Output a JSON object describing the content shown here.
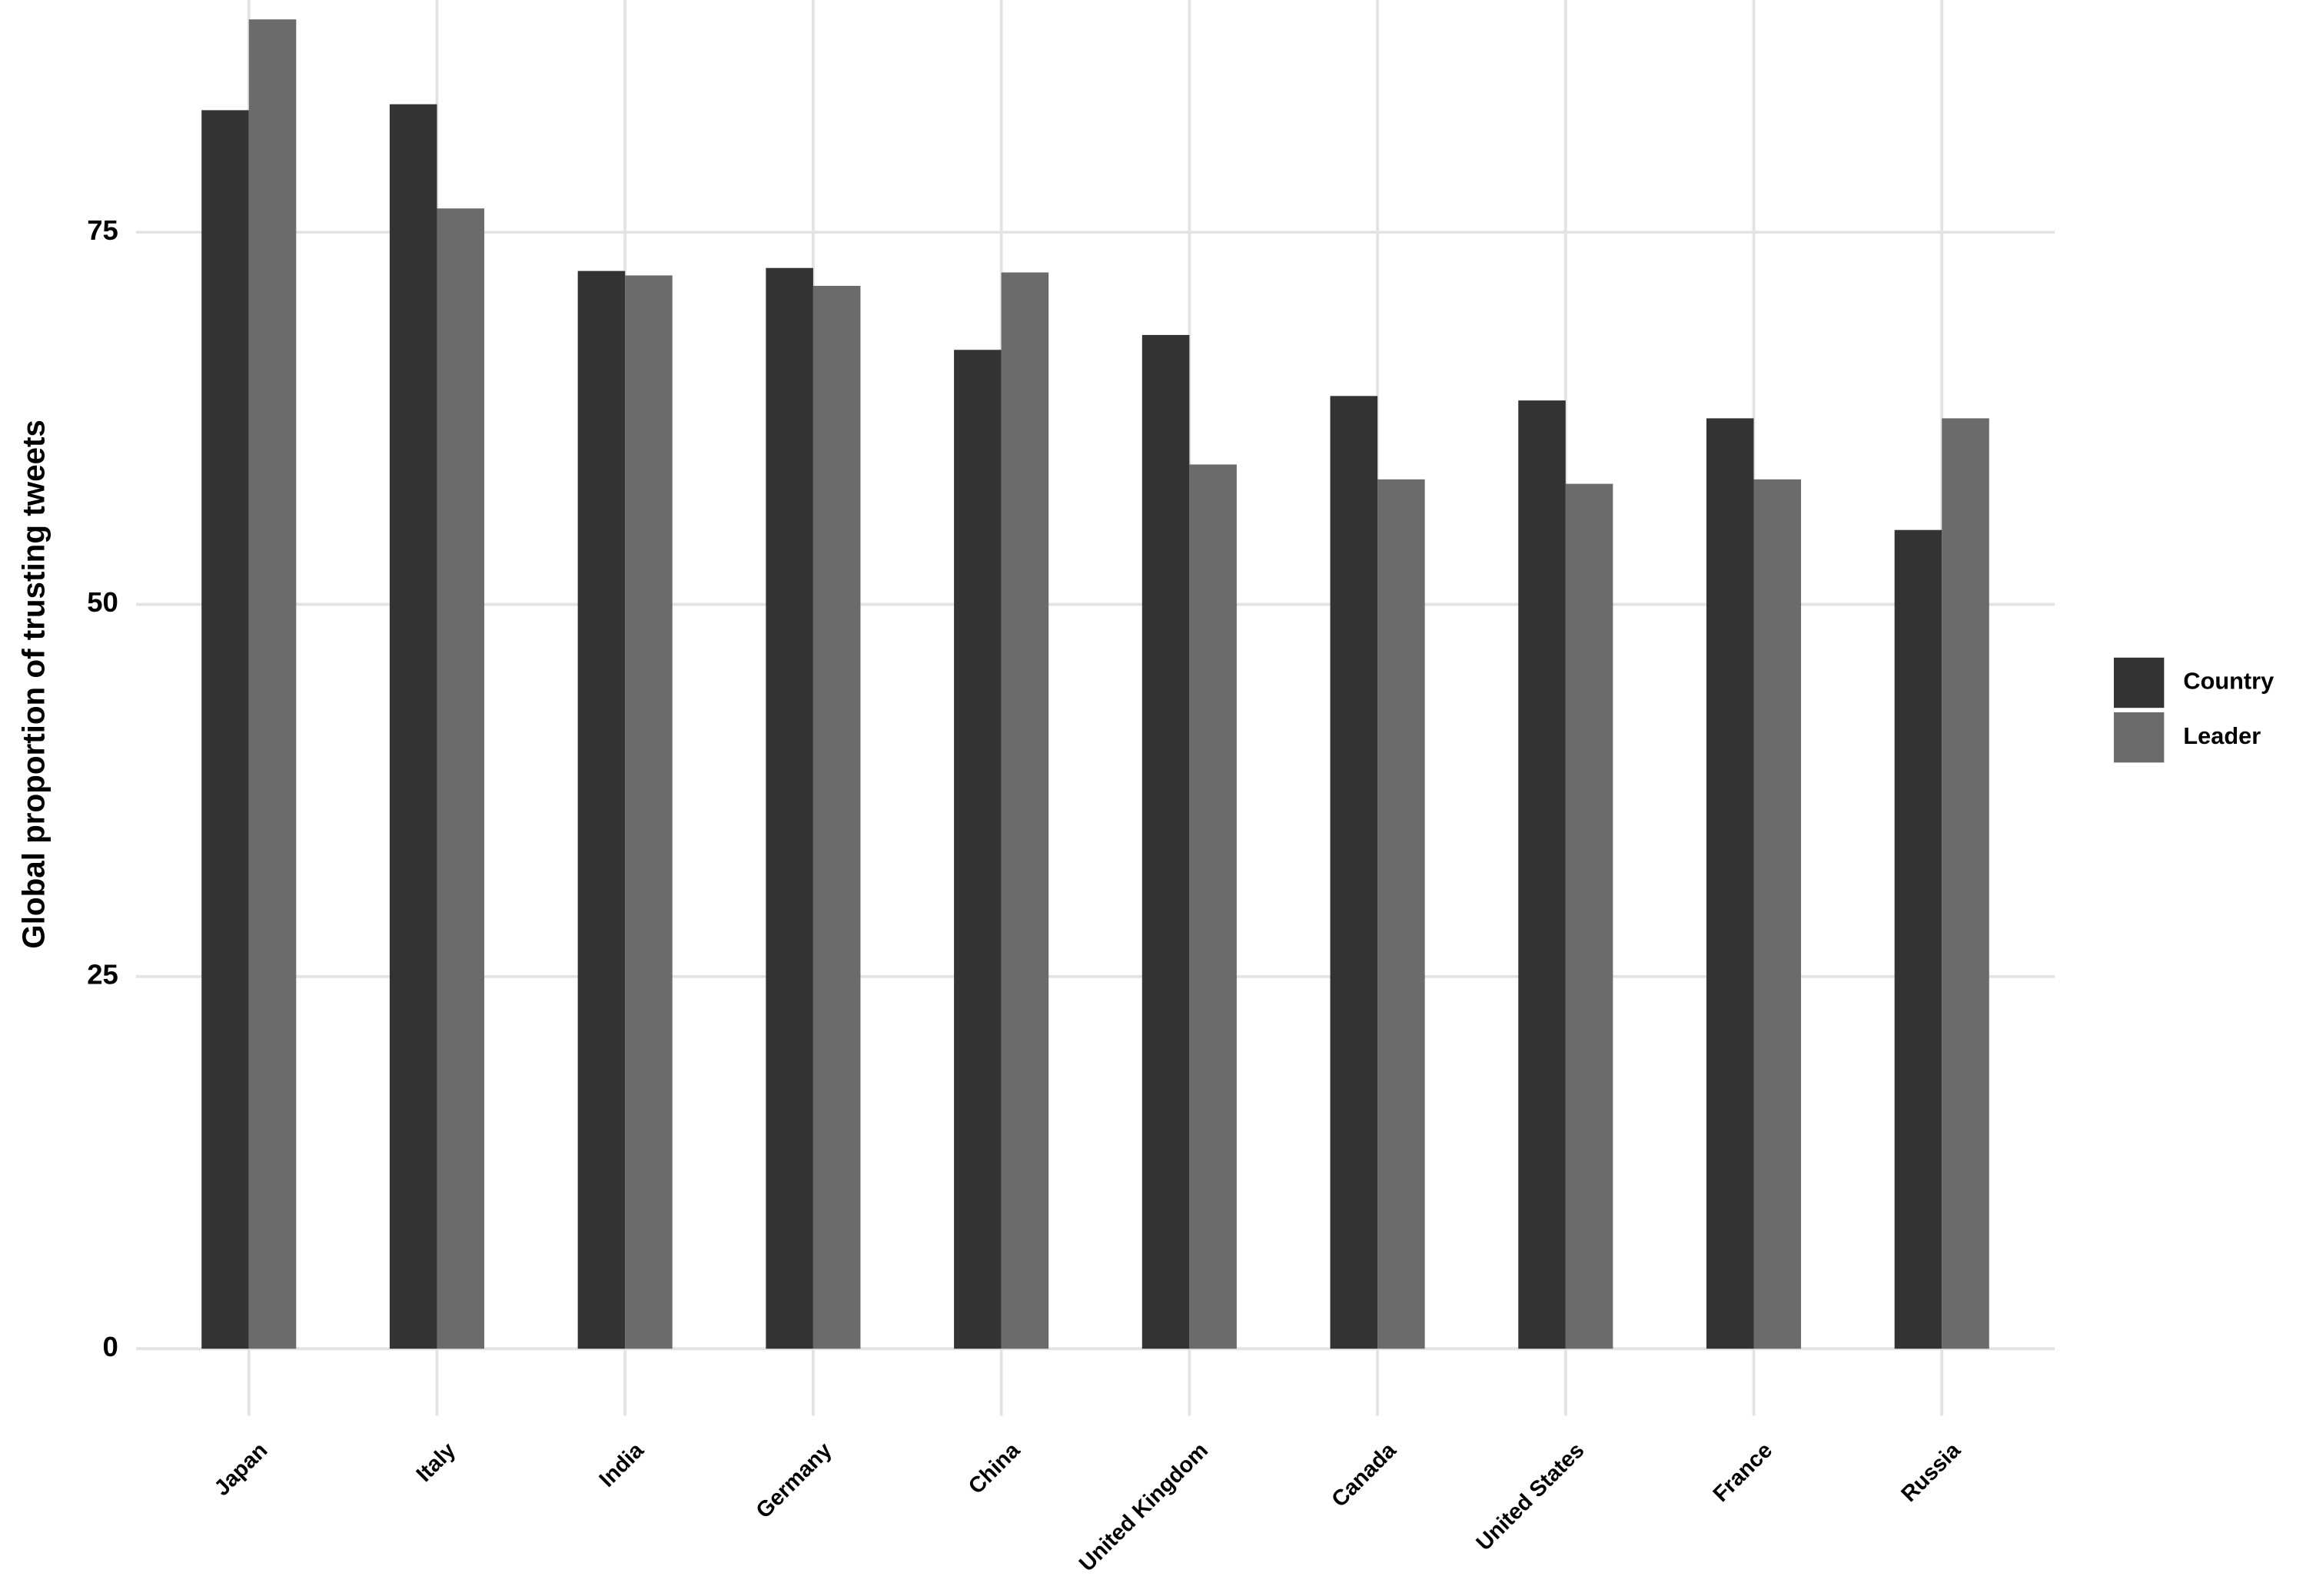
{
  "chart_data": {
    "type": "bar",
    "y_label": "Global proportion of trusting tweets",
    "categories": [
      "Japan",
      "Italy",
      "India",
      "Germany",
      "China",
      "United Kingdom",
      "Canada",
      "United States",
      "France",
      "Russia"
    ],
    "series": [
      {
        "name": "Country",
        "color": "#333333",
        "values": [
          83.2,
          83.6,
          72.4,
          72.6,
          67.1,
          68.1,
          64.0,
          63.7,
          62.5,
          55.0
        ]
      },
      {
        "name": "Leader",
        "color": "#6b6b6b",
        "values": [
          89.3,
          76.6,
          72.1,
          71.4,
          72.3,
          59.4,
          58.4,
          58.1,
          58.4,
          62.5
        ]
      }
    ],
    "ylim": [
      -4.5,
      90.6
    ],
    "yticks": [
      0,
      25,
      50,
      75
    ],
    "grid": true,
    "legend": "right"
  }
}
